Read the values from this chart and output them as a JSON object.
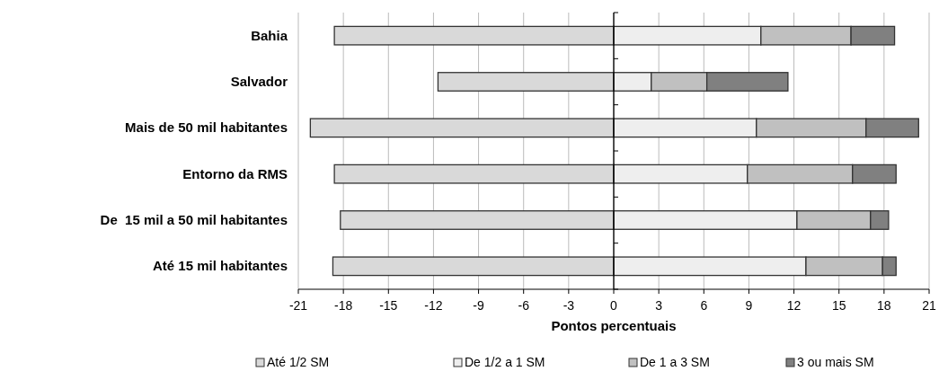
{
  "chart_data": {
    "type": "bar",
    "orientation": "horizontal",
    "stacked": true,
    "xlabel": "Pontos percentuais",
    "categories": [
      "Bahia",
      "Salvador",
      "Mais de 50 mil habitantes",
      "Entorno da RMS",
      "De  15 mil a 50 mil habitantes",
      "Até 15 mil habitantes"
    ],
    "series": [
      {
        "name": "Até 1/2 SM",
        "color": "#d9d9d9",
        "values": [
          -18.6,
          -11.7,
          -20.2,
          -18.6,
          -18.2,
          -18.7
        ]
      },
      {
        "name": "De 1/2 a 1 SM",
        "color": "#eeeeee",
        "values": [
          9.8,
          2.5,
          9.5,
          8.9,
          12.2,
          12.8
        ]
      },
      {
        "name": "De 1 a 3 SM",
        "color": "#c0c0c0",
        "values": [
          6.0,
          3.7,
          7.3,
          7.0,
          4.9,
          5.1
        ]
      },
      {
        "name": "3 ou mais SM",
        "color": "#808080",
        "values": [
          2.9,
          5.4,
          3.5,
          2.9,
          1.2,
          0.9
        ]
      }
    ],
    "xlim": [
      -21,
      21
    ],
    "xticks": [
      -21,
      -18,
      -15,
      -12,
      -9,
      -6,
      -3,
      0,
      3,
      6,
      9,
      12,
      15,
      18,
      21
    ],
    "grid": "x",
    "legend": "bottom"
  }
}
